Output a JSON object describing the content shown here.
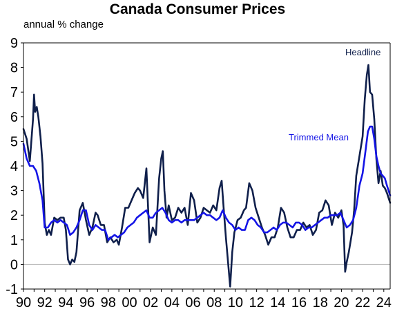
{
  "chart_data": {
    "type": "line",
    "title": "Canada Consumer Prices",
    "subtitle": "annual % change",
    "xlabel": "",
    "ylabel": "",
    "xlim": [
      1990,
      2024.6
    ],
    "ylim": [
      -1,
      9
    ],
    "y_ticks": [
      "-1",
      "0",
      "1",
      "2",
      "3",
      "4",
      "5",
      "6",
      "7",
      "8",
      "9"
    ],
    "x_ticks": [
      "90",
      "92",
      "94",
      "96",
      "98",
      "00",
      "02",
      "04",
      "06",
      "08",
      "10",
      "12",
      "14",
      "16",
      "18",
      "20",
      "22",
      "24"
    ],
    "grid": false,
    "zero_line": true,
    "colors": {
      "headline": "#0f1f4b",
      "trimmed_mean": "#1414e6",
      "zero_line": "#b4b4b4",
      "axis": "#000000"
    },
    "series": [
      {
        "name": "Headline",
        "color": "#0f1f4b",
        "x": [
          1990.0,
          1990.3,
          1990.6,
          1990.9,
          1991.0,
          1991.1,
          1991.25,
          1991.4,
          1991.6,
          1991.8,
          1992.0,
          1992.2,
          1992.4,
          1992.6,
          1992.9,
          1993.2,
          1993.5,
          1993.8,
          1994.0,
          1994.2,
          1994.4,
          1994.6,
          1994.8,
          1995.0,
          1995.3,
          1995.6,
          1995.9,
          1996.2,
          1996.5,
          1996.8,
          1997.0,
          1997.3,
          1997.6,
          1997.9,
          1998.2,
          1998.5,
          1998.8,
          1999.0,
          1999.3,
          1999.6,
          1999.9,
          2000.2,
          2000.5,
          2000.8,
          2001.0,
          2001.3,
          2001.6,
          2001.9,
          2002.2,
          2002.5,
          2002.8,
          2003.0,
          2003.15,
          2003.3,
          2003.5,
          2003.7,
          2004.0,
          2004.3,
          2004.6,
          2004.9,
          2005.2,
          2005.5,
          2005.8,
          2006.1,
          2006.4,
          2006.7,
          2007.0,
          2007.3,
          2007.6,
          2007.9,
          2008.2,
          2008.5,
          2008.7,
          2008.9,
          2009.1,
          2009.3,
          2009.5,
          2009.7,
          2009.9,
          2010.2,
          2010.5,
          2010.8,
          2011.0,
          2011.3,
          2011.6,
          2011.9,
          2012.2,
          2012.5,
          2012.8,
          2013.1,
          2013.4,
          2013.7,
          2014.0,
          2014.3,
          2014.6,
          2014.9,
          2015.2,
          2015.5,
          2015.8,
          2016.1,
          2016.4,
          2016.7,
          2017.0,
          2017.3,
          2017.6,
          2017.9,
          2018.2,
          2018.5,
          2018.8,
          2019.1,
          2019.4,
          2019.7,
          2020.0,
          2020.2,
          2020.35,
          2020.5,
          2020.7,
          2021.0,
          2021.2,
          2021.4,
          2021.7,
          2022.0,
          2022.2,
          2022.4,
          2022.55,
          2022.7,
          2022.9,
          2023.1,
          2023.3,
          2023.5,
          2023.7,
          2023.9,
          2024.1,
          2024.3,
          2024.45,
          2024.6
        ],
        "values": [
          5.5,
          5.1,
          4.2,
          5.9,
          6.9,
          6.2,
          6.4,
          6.0,
          5.2,
          4.1,
          1.7,
          1.2,
          1.4,
          1.2,
          1.9,
          1.8,
          1.9,
          1.9,
          1.4,
          0.2,
          0.0,
          0.2,
          0.1,
          0.5,
          2.2,
          2.5,
          1.8,
          1.2,
          1.5,
          2.1,
          2.0,
          1.6,
          1.6,
          0.9,
          1.1,
          0.9,
          1.0,
          0.8,
          1.5,
          2.3,
          2.3,
          2.6,
          2.9,
          3.1,
          3.0,
          2.7,
          3.9,
          0.9,
          1.5,
          1.2,
          3.5,
          4.3,
          4.6,
          3.0,
          1.9,
          2.4,
          1.8,
          1.9,
          2.3,
          2.1,
          2.3,
          1.6,
          2.9,
          2.6,
          1.7,
          1.9,
          2.3,
          2.2,
          2.1,
          2.4,
          2.2,
          3.1,
          3.4,
          2.2,
          1.1,
          0.1,
          -0.9,
          0.5,
          1.3,
          1.8,
          1.9,
          2.2,
          2.3,
          3.3,
          3.0,
          2.3,
          1.9,
          1.5,
          1.2,
          0.8,
          1.1,
          1.1,
          1.5,
          2.3,
          2.1,
          1.5,
          1.1,
          1.1,
          1.4,
          1.4,
          1.7,
          1.5,
          1.6,
          1.2,
          1.4,
          2.1,
          2.2,
          2.6,
          2.4,
          1.6,
          2.1,
          1.9,
          2.2,
          1.6,
          -0.3,
          0.1,
          0.5,
          1.3,
          2.2,
          3.6,
          4.4,
          5.2,
          6.7,
          7.7,
          8.1,
          7.0,
          6.9,
          5.9,
          4.3,
          3.3,
          3.8,
          3.2,
          3.1,
          2.9,
          2.7,
          2.5
        ]
      },
      {
        "name": "Trimmed Mean",
        "color": "#1414e6",
        "x": [
          1990.0,
          1990.3,
          1990.6,
          1990.9,
          1991.2,
          1991.5,
          1991.8,
          1992.0,
          1992.3,
          1992.6,
          1992.9,
          1993.2,
          1993.5,
          1993.8,
          1994.1,
          1994.4,
          1994.7,
          1995.0,
          1995.3,
          1995.6,
          1995.9,
          1996.2,
          1996.5,
          1996.8,
          1997.1,
          1997.4,
          1997.7,
          1998.0,
          1998.3,
          1998.6,
          1998.9,
          1999.2,
          1999.5,
          1999.8,
          2000.1,
          2000.4,
          2000.7,
          2001.0,
          2001.3,
          2001.6,
          2001.9,
          2002.2,
          2002.5,
          2002.8,
          2003.1,
          2003.4,
          2003.7,
          2004.0,
          2004.3,
          2004.6,
          2004.9,
          2005.2,
          2005.5,
          2005.8,
          2006.1,
          2006.4,
          2006.7,
          2007.0,
          2007.3,
          2007.6,
          2007.9,
          2008.2,
          2008.5,
          2008.8,
          2009.1,
          2009.4,
          2009.7,
          2010.0,
          2010.3,
          2010.6,
          2010.9,
          2011.2,
          2011.5,
          2011.8,
          2012.1,
          2012.4,
          2012.7,
          2013.0,
          2013.3,
          2013.6,
          2013.9,
          2014.2,
          2014.5,
          2014.8,
          2015.1,
          2015.4,
          2015.7,
          2016.0,
          2016.3,
          2016.6,
          2016.9,
          2017.2,
          2017.5,
          2017.8,
          2018.1,
          2018.4,
          2018.7,
          2019.0,
          2019.3,
          2019.6,
          2019.9,
          2020.2,
          2020.5,
          2020.8,
          2021.1,
          2021.4,
          2021.7,
          2022.0,
          2022.3,
          2022.5,
          2022.7,
          2022.9,
          2023.1,
          2023.3,
          2023.5,
          2023.7,
          2023.9,
          2024.1,
          2024.3,
          2024.6
        ],
        "values": [
          4.9,
          4.3,
          4.0,
          4.0,
          3.8,
          3.3,
          2.6,
          1.5,
          1.5,
          1.7,
          1.8,
          1.7,
          1.8,
          1.7,
          1.6,
          1.2,
          1.3,
          1.5,
          1.8,
          2.2,
          2.2,
          1.6,
          1.4,
          1.6,
          1.5,
          1.4,
          1.4,
          1.0,
          1.1,
          1.2,
          1.1,
          1.2,
          1.3,
          1.5,
          1.6,
          1.7,
          1.9,
          2.0,
          2.1,
          2.2,
          1.9,
          1.9,
          2.1,
          2.2,
          2.3,
          2.1,
          1.8,
          1.7,
          1.8,
          1.8,
          1.7,
          1.8,
          1.8,
          1.8,
          1.8,
          1.9,
          2.0,
          2.1,
          2.0,
          2.0,
          1.9,
          1.8,
          1.9,
          2.2,
          1.9,
          1.7,
          1.6,
          1.4,
          1.5,
          1.4,
          1.4,
          1.8,
          1.9,
          1.8,
          1.6,
          1.5,
          1.3,
          1.3,
          1.4,
          1.5,
          1.4,
          1.6,
          1.7,
          1.7,
          1.6,
          1.5,
          1.7,
          1.7,
          1.6,
          1.4,
          1.5,
          1.5,
          1.6,
          1.7,
          1.8,
          1.9,
          1.9,
          2.0,
          2.0,
          2.0,
          2.1,
          1.8,
          1.5,
          1.6,
          1.8,
          2.3,
          3.2,
          3.7,
          4.7,
          5.4,
          5.6,
          5.6,
          5.1,
          4.4,
          4.0,
          3.7,
          3.6,
          3.5,
          3.2,
          2.8
        ]
      }
    ],
    "annotations": [
      {
        "text": "Headline",
        "series": "Headline"
      },
      {
        "text": "Trimmed Mean",
        "series": "Trimmed Mean"
      }
    ]
  }
}
